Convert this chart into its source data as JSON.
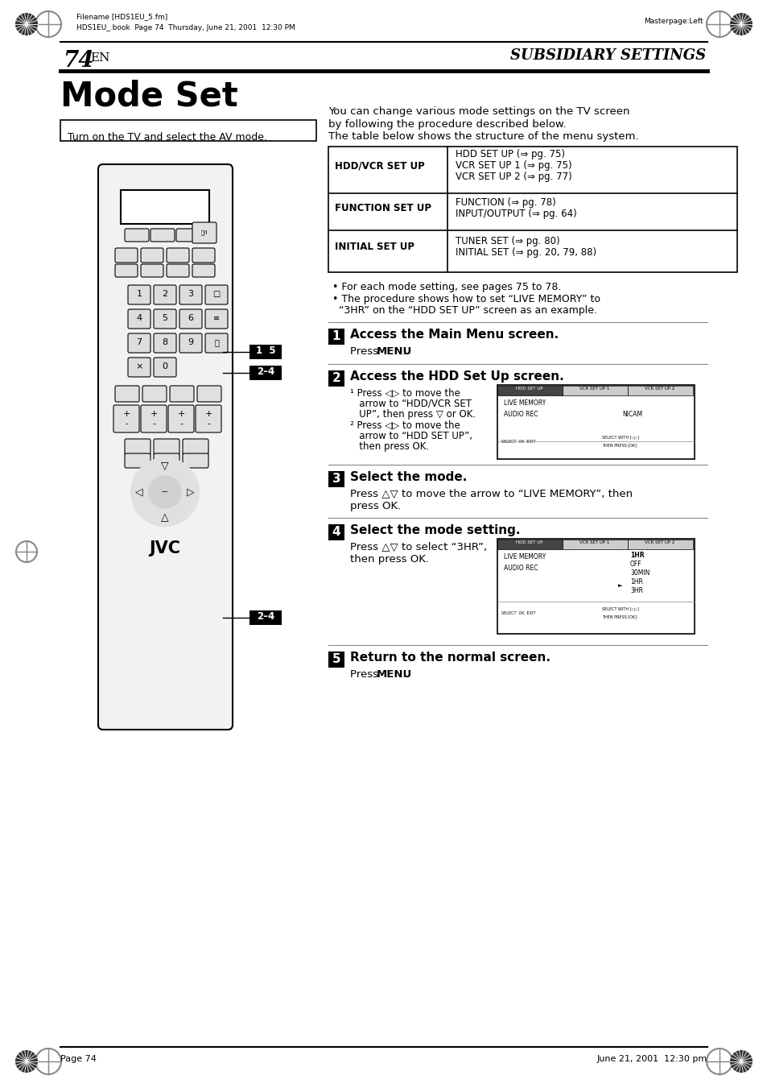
{
  "page_num": "74",
  "page_lang": "EN",
  "header_right": "SUBSIDIARY SETTINGS",
  "header_filename": "Filename [HDS1EU_5.fm]",
  "header_book": "HDS1EU_.book  Page 74  Thursday, June 21, 2001  12:30 PM",
  "header_masterpage": "Masterpage:Left",
  "title": "Mode Set",
  "intro_box": "Turn on the TV and select the AV mode.",
  "intro_text1": "You can change various mode settings on the TV screen",
  "intro_text2": "by following the procedure described below.",
  "intro_text3": "The table below shows the structure of the menu system.",
  "table_row1_left": "HDD/VCR SET UP",
  "table_row1_right1": "HDD SET UP ( pg. 75)",
  "table_row1_right2": "VCR SET UP 1 ( pg. 75)",
  "table_row1_right3": "VCR SET UP 2 ( pg. 77)",
  "table_row2_left": "FUNCTION SET UP",
  "table_row2_right1": "FUNCTION ( pg. 78)",
  "table_row2_right2": "INPUT/OUTPUT ( pg. 64)",
  "table_row3_left": "INITIAL SET UP",
  "table_row3_right1": "TUNER SET ( pg. 80)",
  "table_row3_right2": "INITIAL SET ( pg. 20, 79, 88)",
  "bullet1": "For each mode setting, see pages 75 to 78.",
  "bullet2a": "The procedure shows how to set",
  "bullet2b": "LIVE MEMORY",
  "bullet2c": "to",
  "bullet2d": "3HR",
  "bullet2e": "on the",
  "bullet2f": "HDD SET UP",
  "bullet2g": "screen as an example.",
  "step1_num": "1",
  "step1_title": "Access the Main Menu screen.",
  "step2_num": "2",
  "step2_title": "Access the HDD Set Up screen.",
  "step3_num": "3",
  "step3_title": "Select the mode.",
  "step4_num": "4",
  "step4_title": "Select the mode setting.",
  "step5_num": "5",
  "step5_title": "Return to the normal screen.",
  "footer_left": "Page 74",
  "footer_right": "June 21, 2001  12:30 pm",
  "bg_color": "#ffffff",
  "text_color": "#000000",
  "step_num_bg": "#000000",
  "step_num_fg": "#ffffff"
}
